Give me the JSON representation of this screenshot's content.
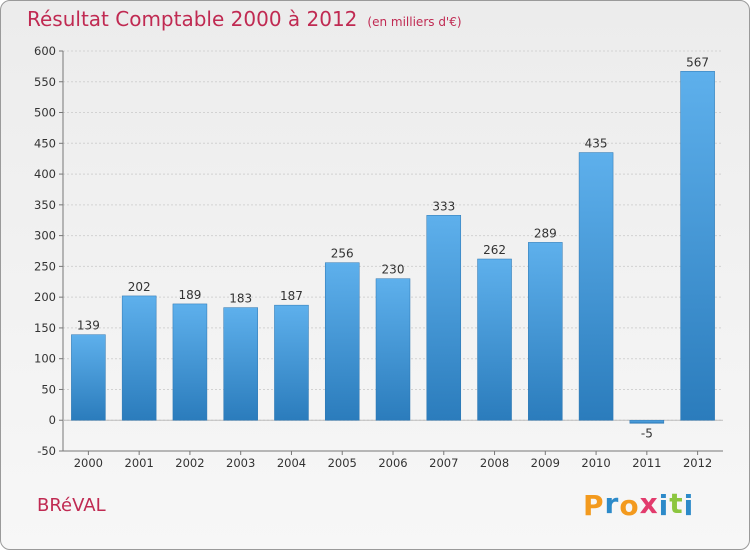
{
  "title": "Résultat Comptable 2000 à 2012",
  "subtitle": "(en milliers d'€)",
  "commune": "BRéVAL",
  "brand": {
    "letters": [
      "P",
      "r",
      "o",
      "x",
      "i",
      "t",
      "i"
    ],
    "colors": [
      "#f39a1e",
      "#2c8ac9",
      "#f39a1e",
      "#e23b6d",
      "#2c8ac9",
      "#8cc63f",
      "#2c8ac9"
    ]
  },
  "colors": {
    "bar_top": "#5eb0ec",
    "bar_bottom": "#2b7cbc",
    "title": "#c02a52"
  },
  "chart_data": {
    "type": "bar",
    "title": "Résultat Comptable 2000 à 2012",
    "subtitle": "(en milliers d'€)",
    "categories": [
      "2000",
      "2001",
      "2002",
      "2003",
      "2004",
      "2005",
      "2006",
      "2007",
      "2008",
      "2009",
      "2010",
      "2011",
      "2012"
    ],
    "values": [
      139,
      202,
      189,
      183,
      187,
      256,
      230,
      333,
      262,
      289,
      435,
      -5,
      567
    ],
    "ylim": [
      -50,
      600
    ],
    "yticks": [
      -50,
      0,
      50,
      100,
      150,
      200,
      250,
      300,
      350,
      400,
      450,
      500,
      550,
      600
    ],
    "xlabel": "",
    "ylabel": "",
    "grid": true
  }
}
